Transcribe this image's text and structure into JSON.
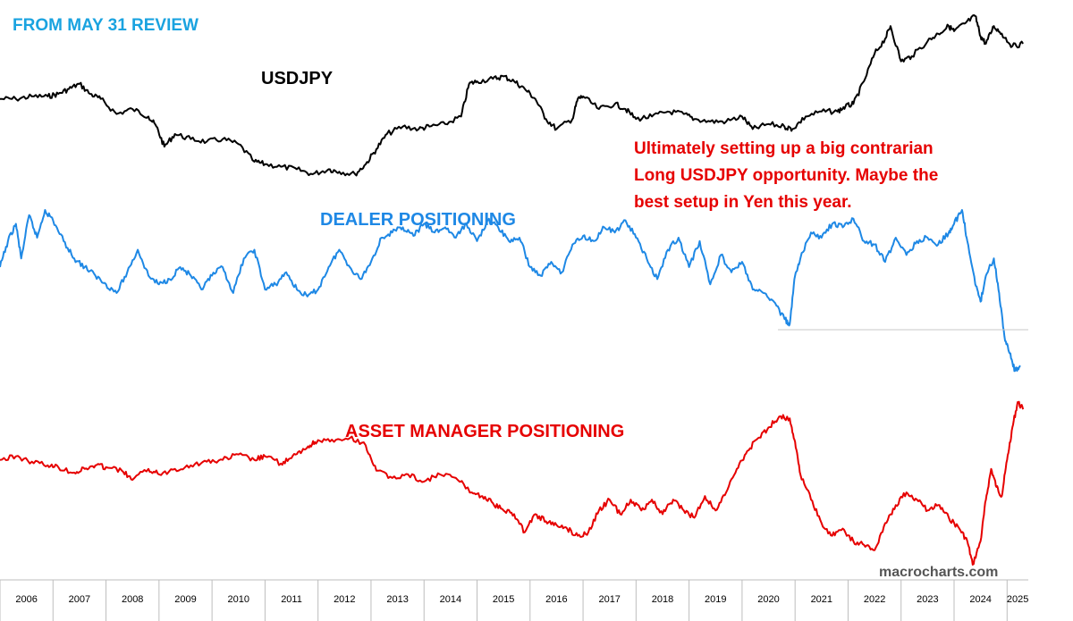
{
  "colors": {
    "usdjpy": "#000000",
    "dealer": "#1e88e5",
    "asset_manager": "#e60000",
    "header": "#1aa3e0",
    "note": "#e60000",
    "watermark": "#555555"
  },
  "header": "FROM MAY 31 REVIEW",
  "annotation": [
    "Ultimately setting up a big contrarian",
    "Long USDJPY opportunity. Maybe the",
    "best setup in Yen this year."
  ],
  "watermark": "macrocharts.com",
  "chart_data": {
    "type": "line",
    "x_axis": {
      "labels": [
        "2006",
        "2007",
        "2008",
        "2009",
        "2010",
        "2011",
        "2012",
        "2013",
        "2014",
        "2015",
        "2016",
        "2017",
        "2018",
        "2019",
        "2020",
        "2021",
        "2022",
        "2023",
        "2024",
        "2025"
      ],
      "range": [
        2006,
        2025.4
      ]
    },
    "series": [
      {
        "name": "USDJPY",
        "color": "#000000",
        "points": [
          [
            2006.0,
            104
          ],
          [
            2006.3,
            104
          ],
          [
            2006.6,
            105
          ],
          [
            2006.9,
            105
          ],
          [
            2007.1,
            106
          ],
          [
            2007.3,
            108
          ],
          [
            2007.5,
            110
          ],
          [
            2007.7,
            106
          ],
          [
            2007.9,
            104
          ],
          [
            2008.2,
            98
          ],
          [
            2008.5,
            100
          ],
          [
            2008.8,
            97
          ],
          [
            2008.95,
            93
          ],
          [
            2009.1,
            85
          ],
          [
            2009.3,
            90
          ],
          [
            2009.6,
            88
          ],
          [
            2009.9,
            87
          ],
          [
            2010.2,
            88
          ],
          [
            2010.5,
            86
          ],
          [
            2010.8,
            79
          ],
          [
            2011.0,
            78
          ],
          [
            2011.3,
            77
          ],
          [
            2011.6,
            76
          ],
          [
            2011.9,
            74
          ],
          [
            2012.2,
            76
          ],
          [
            2012.4,
            75
          ],
          [
            2012.7,
            74
          ],
          [
            2012.9,
            78
          ],
          [
            2013.1,
            84
          ],
          [
            2013.3,
            90
          ],
          [
            2013.6,
            93
          ],
          [
            2013.9,
            92
          ],
          [
            2014.1,
            93
          ],
          [
            2014.4,
            94
          ],
          [
            2014.7,
            97
          ],
          [
            2014.85,
            110
          ],
          [
            2015.0,
            111
          ],
          [
            2015.3,
            112
          ],
          [
            2015.5,
            113
          ],
          [
            2015.7,
            111
          ],
          [
            2015.9,
            108
          ],
          [
            2016.1,
            104
          ],
          [
            2016.3,
            96
          ],
          [
            2016.5,
            92
          ],
          [
            2016.8,
            96
          ],
          [
            2016.9,
            104
          ],
          [
            2017.0,
            105
          ],
          [
            2017.3,
            100
          ],
          [
            2017.6,
            102
          ],
          [
            2017.8,
            100
          ],
          [
            2018.0,
            96
          ],
          [
            2018.3,
            97
          ],
          [
            2018.6,
            99
          ],
          [
            2018.9,
            98
          ],
          [
            2019.1,
            96
          ],
          [
            2019.4,
            95
          ],
          [
            2019.7,
            95
          ],
          [
            2020.0,
            97
          ],
          [
            2020.2,
            92
          ],
          [
            2020.5,
            94
          ],
          [
            2020.8,
            93
          ],
          [
            2020.95,
            92
          ],
          [
            2021.2,
            97
          ],
          [
            2021.5,
            99
          ],
          [
            2021.8,
            99
          ],
          [
            2021.95,
            101
          ],
          [
            2022.1,
            102
          ],
          [
            2022.3,
            111
          ],
          [
            2022.5,
            122
          ],
          [
            2022.7,
            128
          ],
          [
            2022.8,
            133
          ],
          [
            2023.0,
            119
          ],
          [
            2023.2,
            121
          ],
          [
            2023.5,
            127
          ],
          [
            2023.7,
            130
          ],
          [
            2023.9,
            133
          ],
          [
            2024.0,
            131
          ],
          [
            2024.2,
            134
          ],
          [
            2024.4,
            137
          ],
          [
            2024.5,
            129
          ],
          [
            2024.6,
            126
          ],
          [
            2024.75,
            133
          ],
          [
            2024.9,
            130
          ],
          [
            2025.1,
            125
          ],
          [
            2025.3,
            126
          ]
        ]
      },
      {
        "name": "DEALER POSITIONING",
        "color": "#1e88e5",
        "points": [
          [
            2006.0,
            55
          ],
          [
            2006.15,
            70
          ],
          [
            2006.3,
            80
          ],
          [
            2006.4,
            60
          ],
          [
            2006.55,
            85
          ],
          [
            2006.7,
            72
          ],
          [
            2006.85,
            88
          ],
          [
            2007.0,
            82
          ],
          [
            2007.2,
            70
          ],
          [
            2007.4,
            60
          ],
          [
            2007.6,
            55
          ],
          [
            2007.8,
            50
          ],
          [
            2008.0,
            45
          ],
          [
            2008.2,
            40
          ],
          [
            2008.4,
            52
          ],
          [
            2008.6,
            65
          ],
          [
            2008.8,
            50
          ],
          [
            2009.0,
            45
          ],
          [
            2009.2,
            48
          ],
          [
            2009.4,
            55
          ],
          [
            2009.6,
            50
          ],
          [
            2009.8,
            42
          ],
          [
            2010.0,
            50
          ],
          [
            2010.2,
            55
          ],
          [
            2010.4,
            40
          ],
          [
            2010.6,
            60
          ],
          [
            2010.8,
            65
          ],
          [
            2011.0,
            42
          ],
          [
            2011.2,
            45
          ],
          [
            2011.4,
            52
          ],
          [
            2011.6,
            42
          ],
          [
            2011.8,
            38
          ],
          [
            2012.0,
            42
          ],
          [
            2012.2,
            55
          ],
          [
            2012.4,
            65
          ],
          [
            2012.6,
            55
          ],
          [
            2012.8,
            48
          ],
          [
            2013.0,
            58
          ],
          [
            2013.2,
            72
          ],
          [
            2013.4,
            75
          ],
          [
            2013.6,
            78
          ],
          [
            2013.8,
            73
          ],
          [
            2014.0,
            80
          ],
          [
            2014.2,
            75
          ],
          [
            2014.4,
            78
          ],
          [
            2014.6,
            72
          ],
          [
            2014.8,
            80
          ],
          [
            2015.0,
            70
          ],
          [
            2015.2,
            82
          ],
          [
            2015.4,
            78
          ],
          [
            2015.6,
            70
          ],
          [
            2015.8,
            72
          ],
          [
            2016.0,
            55
          ],
          [
            2016.2,
            50
          ],
          [
            2016.4,
            58
          ],
          [
            2016.6,
            52
          ],
          [
            2016.8,
            68
          ],
          [
            2017.0,
            73
          ],
          [
            2017.2,
            70
          ],
          [
            2017.4,
            78
          ],
          [
            2017.6,
            75
          ],
          [
            2017.8,
            82
          ],
          [
            2018.0,
            72
          ],
          [
            2018.2,
            60
          ],
          [
            2018.4,
            48
          ],
          [
            2018.6,
            65
          ],
          [
            2018.8,
            72
          ],
          [
            2019.0,
            55
          ],
          [
            2019.2,
            70
          ],
          [
            2019.4,
            45
          ],
          [
            2019.6,
            62
          ],
          [
            2019.8,
            52
          ],
          [
            2020.0,
            58
          ],
          [
            2020.2,
            42
          ],
          [
            2020.4,
            40
          ],
          [
            2020.6,
            35
          ],
          [
            2020.8,
            25
          ],
          [
            2020.9,
            22
          ],
          [
            2021.0,
            50
          ],
          [
            2021.1,
            60
          ],
          [
            2021.3,
            75
          ],
          [
            2021.5,
            72
          ],
          [
            2021.7,
            80
          ],
          [
            2021.9,
            78
          ],
          [
            2022.1,
            83
          ],
          [
            2022.3,
            70
          ],
          [
            2022.5,
            68
          ],
          [
            2022.7,
            58
          ],
          [
            2022.9,
            72
          ],
          [
            2023.1,
            62
          ],
          [
            2023.3,
            70
          ],
          [
            2023.5,
            72
          ],
          [
            2023.7,
            68
          ],
          [
            2023.9,
            75
          ],
          [
            2024.0,
            80
          ],
          [
            2024.15,
            88
          ],
          [
            2024.25,
            70
          ],
          [
            2024.4,
            45
          ],
          [
            2024.5,
            35
          ],
          [
            2024.6,
            50
          ],
          [
            2024.75,
            60
          ],
          [
            2024.85,
            40
          ],
          [
            2024.95,
            15
          ],
          [
            2025.05,
            5
          ],
          [
            2025.15,
            -5
          ],
          [
            2025.25,
            -2
          ]
        ]
      },
      {
        "name": "ASSET MANAGER POSITIONING",
        "color": "#e60000",
        "points": [
          [
            2006.0,
            50
          ],
          [
            2006.3,
            52
          ],
          [
            2006.6,
            49
          ],
          [
            2006.9,
            47
          ],
          [
            2007.1,
            46
          ],
          [
            2007.4,
            43
          ],
          [
            2007.6,
            45
          ],
          [
            2007.8,
            47
          ],
          [
            2008.0,
            46
          ],
          [
            2008.3,
            44
          ],
          [
            2008.5,
            39
          ],
          [
            2008.8,
            45
          ],
          [
            2009.0,
            42
          ],
          [
            2009.3,
            45
          ],
          [
            2009.6,
            47
          ],
          [
            2009.9,
            49
          ],
          [
            2010.2,
            50
          ],
          [
            2010.5,
            53
          ],
          [
            2010.8,
            50
          ],
          [
            2011.0,
            52
          ],
          [
            2011.3,
            48
          ],
          [
            2011.5,
            51
          ],
          [
            2011.7,
            55
          ],
          [
            2011.85,
            58
          ],
          [
            2012.0,
            61
          ],
          [
            2012.3,
            60
          ],
          [
            2012.6,
            62
          ],
          [
            2012.9,
            58
          ],
          [
            2013.1,
            44
          ],
          [
            2013.4,
            40
          ],
          [
            2013.7,
            42
          ],
          [
            2014.0,
            38
          ],
          [
            2014.3,
            42
          ],
          [
            2014.6,
            40
          ],
          [
            2014.9,
            32
          ],
          [
            2015.1,
            30
          ],
          [
            2015.3,
            26
          ],
          [
            2015.5,
            22
          ],
          [
            2015.7,
            20
          ],
          [
            2015.9,
            10
          ],
          [
            2016.1,
            20
          ],
          [
            2016.3,
            16
          ],
          [
            2016.5,
            14
          ],
          [
            2016.7,
            12
          ],
          [
            2016.9,
            8
          ],
          [
            2017.1,
            10
          ],
          [
            2017.3,
            22
          ],
          [
            2017.5,
            28
          ],
          [
            2017.7,
            20
          ],
          [
            2017.9,
            28
          ],
          [
            2018.1,
            22
          ],
          [
            2018.3,
            28
          ],
          [
            2018.5,
            20
          ],
          [
            2018.7,
            28
          ],
          [
            2018.9,
            22
          ],
          [
            2019.1,
            18
          ],
          [
            2019.3,
            30
          ],
          [
            2019.5,
            22
          ],
          [
            2019.7,
            32
          ],
          [
            2019.9,
            45
          ],
          [
            2020.1,
            55
          ],
          [
            2020.3,
            62
          ],
          [
            2020.5,
            68
          ],
          [
            2020.7,
            74
          ],
          [
            2020.9,
            73
          ],
          [
            2021.0,
            60
          ],
          [
            2021.1,
            42
          ],
          [
            2021.3,
            28
          ],
          [
            2021.5,
            15
          ],
          [
            2021.7,
            8
          ],
          [
            2021.9,
            12
          ],
          [
            2022.1,
            5
          ],
          [
            2022.3,
            3
          ],
          [
            2022.5,
            0
          ],
          [
            2022.7,
            15
          ],
          [
            2022.9,
            25
          ],
          [
            2023.1,
            32
          ],
          [
            2023.3,
            28
          ],
          [
            2023.5,
            22
          ],
          [
            2023.7,
            25
          ],
          [
            2023.9,
            18
          ],
          [
            2024.1,
            12
          ],
          [
            2024.25,
            5
          ],
          [
            2024.35,
            -8
          ],
          [
            2024.5,
            5
          ],
          [
            2024.6,
            28
          ],
          [
            2024.7,
            45
          ],
          [
            2024.8,
            35
          ],
          [
            2024.9,
            30
          ],
          [
            2025.0,
            50
          ],
          [
            2025.1,
            68
          ],
          [
            2025.2,
            82
          ],
          [
            2025.3,
            78
          ]
        ]
      }
    ]
  }
}
